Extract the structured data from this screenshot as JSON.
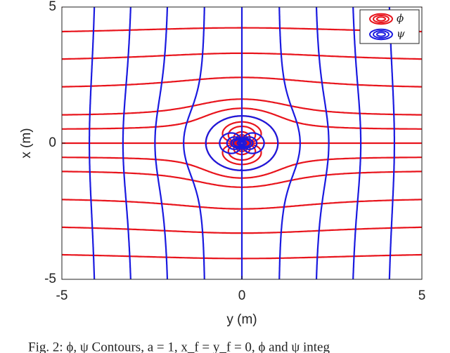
{
  "chart_data": {
    "type": "contour",
    "x_label": "y (m)",
    "y_label": "x (m)",
    "xlim": [
      -5,
      5
    ],
    "ylim": [
      -5,
      5
    ],
    "xticks": [
      -5,
      0,
      5
    ],
    "yticks": [
      -5,
      0,
      5
    ],
    "legend": "upper right",
    "caption": "Fig. 2: ϕ, ψ Contours, a = 1, x_f = y_f = 0, ϕ and ψ integ",
    "series": [
      {
        "name": "ϕ",
        "color": "#e8141c",
        "field": "vertical",
        "levels": [
          -4.9,
          -4,
          -3,
          -2,
          -1,
          -0.5,
          0,
          0.5,
          1,
          2,
          3,
          4,
          4.9,
          -8,
          8,
          -16,
          16
        ]
      },
      {
        "name": "ψ",
        "color": "#1a1ae0",
        "field": "horizontal",
        "levels": [
          -4,
          -3,
          -2,
          -1,
          0,
          1,
          2,
          3,
          4,
          -8,
          8,
          -16,
          16
        ]
      }
    ]
  }
}
